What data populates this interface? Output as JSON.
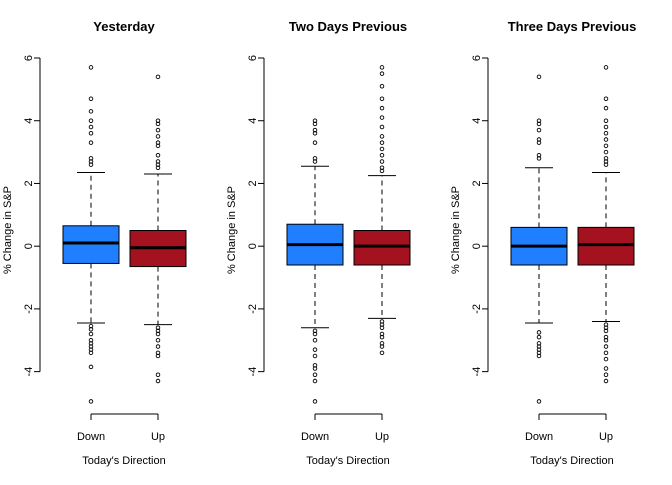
{
  "colors": {
    "down": "#1f7fff",
    "up": "#a3121e"
  },
  "chart_data": [
    {
      "type": "boxplot",
      "title": "Yesterday",
      "xlabel": "Today's Direction",
      "ylabel": "% Change in S&P",
      "categories": [
        "Down",
        "Up"
      ],
      "ylim": [
        -5,
        6
      ],
      "yticks": [
        "-4",
        "-2",
        "0",
        "2",
        "4",
        "6"
      ],
      "boxes": [
        {
          "name": "Down",
          "whislo": -2.45,
          "q1": -0.55,
          "med": 0.1,
          "q3": 0.65,
          "whishi": 2.35,
          "fliers": [
            5.7,
            4.7,
            4.3,
            4.0,
            3.8,
            3.6,
            3.3,
            2.8,
            2.7,
            2.6,
            -2.55,
            -2.65,
            -2.8,
            -3.0,
            -3.1,
            -3.2,
            -3.3,
            -3.4,
            -3.85,
            -4.95
          ]
        },
        {
          "name": "Up",
          "whislo": -2.5,
          "q1": -0.65,
          "med": -0.05,
          "q3": 0.5,
          "whishi": 2.3,
          "fliers": [
            5.4,
            4.0,
            3.9,
            3.7,
            3.5,
            3.3,
            3.2,
            2.9,
            2.7,
            2.6,
            2.5,
            -2.6,
            -2.7,
            -2.8,
            -3.0,
            -3.2,
            -3.4,
            -3.5,
            -4.1,
            -4.3
          ]
        }
      ]
    },
    {
      "type": "boxplot",
      "title": "Two Days Previous",
      "xlabel": "Today's Direction",
      "ylabel": "% Change in S&P",
      "categories": [
        "Down",
        "Up"
      ],
      "ylim": [
        -5,
        6
      ],
      "yticks": [
        "-4",
        "-2",
        "0",
        "2",
        "4",
        "6"
      ],
      "boxes": [
        {
          "name": "Down",
          "whislo": -2.6,
          "q1": -0.6,
          "med": 0.05,
          "q3": 0.7,
          "whishi": 2.55,
          "fliers": [
            4.0,
            3.9,
            3.7,
            3.6,
            3.3,
            2.8,
            2.7,
            -2.7,
            -2.8,
            -3.0,
            -3.3,
            -3.5,
            -3.8,
            -3.9,
            -4.1,
            -4.3,
            -4.95
          ]
        },
        {
          "name": "Up",
          "whislo": -2.3,
          "q1": -0.6,
          "med": 0.0,
          "q3": 0.5,
          "whishi": 2.25,
          "fliers": [
            5.7,
            5.5,
            5.1,
            4.7,
            4.4,
            4.1,
            3.8,
            3.5,
            3.3,
            3.1,
            2.9,
            2.7,
            2.5,
            2.4,
            -2.4,
            -2.5,
            -2.6,
            -2.8,
            -2.9,
            -3.1,
            -3.2,
            -3.4
          ]
        }
      ]
    },
    {
      "type": "boxplot",
      "title": "Three Days Previous",
      "xlabel": "Today's Direction",
      "ylabel": "% Change in S&P",
      "categories": [
        "Down",
        "Up"
      ],
      "ylim": [
        -5,
        6
      ],
      "yticks": [
        "-4",
        "-2",
        "0",
        "2",
        "4",
        "6"
      ],
      "boxes": [
        {
          "name": "Down",
          "whislo": -2.45,
          "q1": -0.6,
          "med": 0.0,
          "q3": 0.6,
          "whishi": 2.5,
          "fliers": [
            5.4,
            4.0,
            3.9,
            3.7,
            3.4,
            3.3,
            2.9,
            2.8,
            -2.75,
            -2.9,
            -3.1,
            -3.2,
            -3.3,
            -3.4,
            -3.5,
            -4.95
          ]
        },
        {
          "name": "Up",
          "whislo": -2.4,
          "q1": -0.6,
          "med": 0.05,
          "q3": 0.6,
          "whishi": 2.35,
          "fliers": [
            5.7,
            4.7,
            4.4,
            4.0,
            3.8,
            3.6,
            3.4,
            3.2,
            3.0,
            2.8,
            2.7,
            2.6,
            -2.5,
            -2.6,
            -2.7,
            -2.9,
            -3.0,
            -3.2,
            -3.4,
            -3.6,
            -3.9,
            -4.1,
            -4.3
          ]
        }
      ]
    }
  ]
}
